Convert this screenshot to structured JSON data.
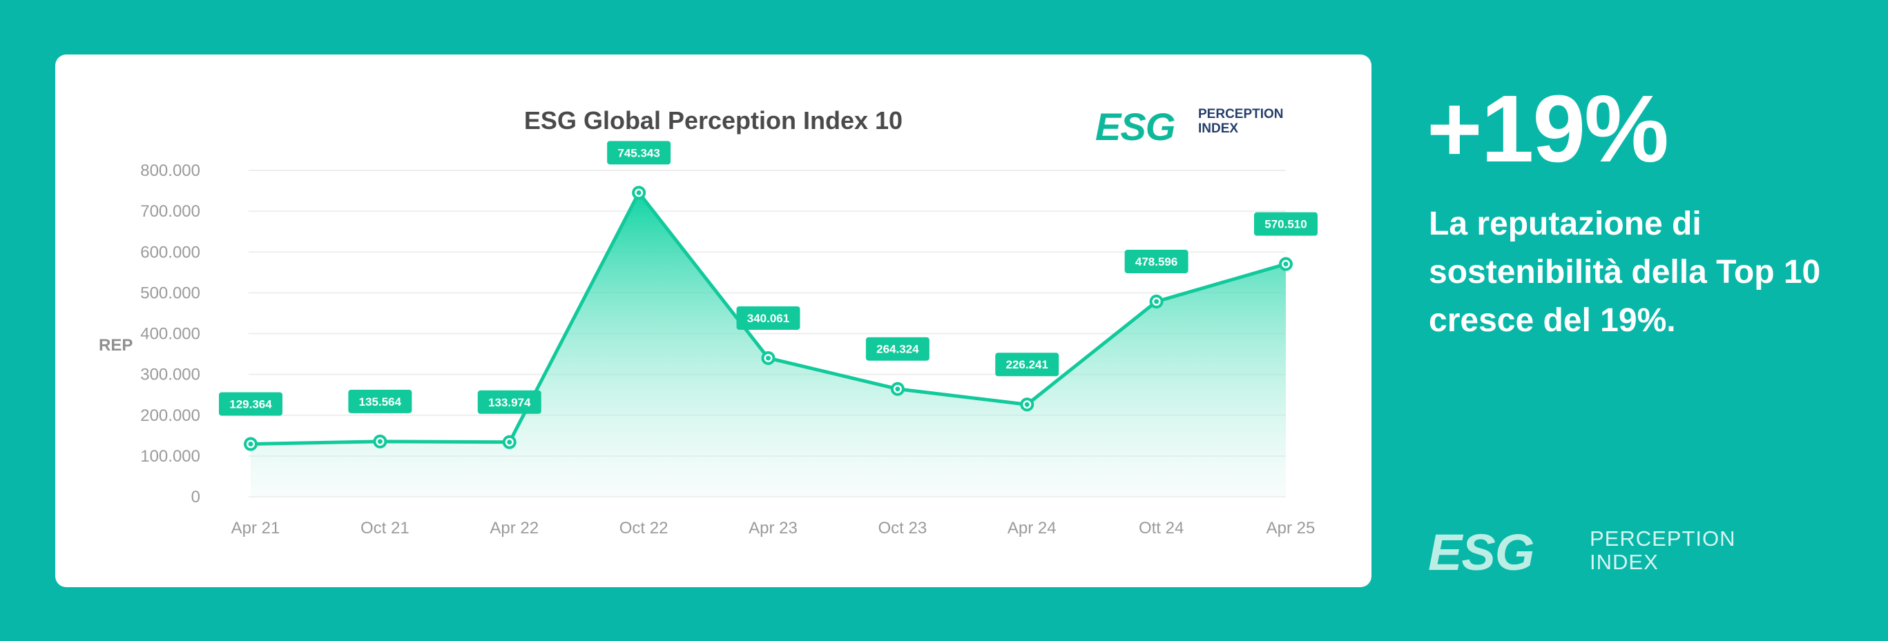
{
  "chart_data": {
    "type": "area",
    "title": "ESG Global Perception Index 10",
    "ylabel": "REP",
    "ylim": [
      0,
      800000
    ],
    "yticks": [
      0,
      100000,
      200000,
      300000,
      400000,
      500000,
      600000,
      700000,
      800000
    ],
    "ytick_labels": [
      "0",
      "100.000",
      "200.000",
      "300.000",
      "400.000",
      "500.000",
      "600.000",
      "700.000",
      "800.000"
    ],
    "categories": [
      "Apr 21",
      "Oct 21",
      "Apr 22",
      "Oct 22",
      "Apr 23",
      "Oct 23",
      "Apr 24",
      "Ott 24",
      "Apr 25"
    ],
    "values": [
      129364,
      135564,
      133974,
      745343,
      340061,
      264324,
      226241,
      478596,
      570510
    ],
    "data_labels": [
      "129.364",
      "135.564",
      "133.974",
      "745.343",
      "340.061",
      "264.324",
      "226.241",
      "478.596",
      "570.510"
    ],
    "grid": true,
    "colors": {
      "line": "#12c99b",
      "badge": "#12c99b",
      "grid": "#eeeeee"
    }
  },
  "logo": {
    "letters": "ESG",
    "line1": "PERCEPTION",
    "line2": "INDEX",
    "colors": {
      "teal": "#0fb89a",
      "navy": "#243e6c",
      "light": "#bdeee6"
    }
  },
  "summary": {
    "big_number": "+19%",
    "headline": "La reputazione di sostenibilità della Top 10 cresce del 19%."
  },
  "colors": {
    "background": "#08b7a8",
    "card": "#ffffff"
  }
}
